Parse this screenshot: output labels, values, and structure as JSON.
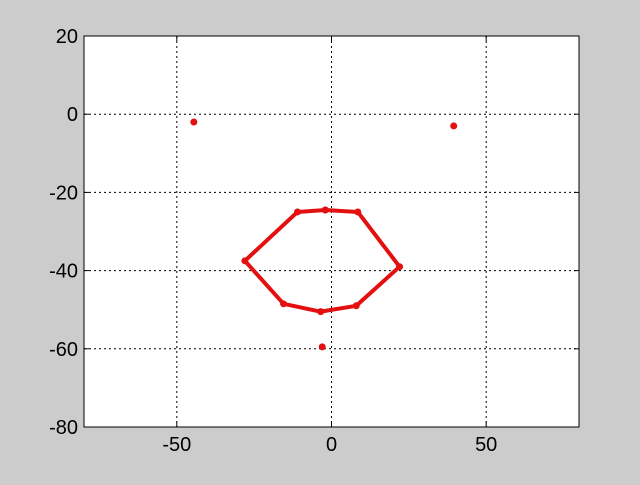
{
  "chart_data": {
    "type": "line",
    "title": "",
    "xlabel": "",
    "ylabel": "",
    "xlim": [
      -80,
      80
    ],
    "ylim": [
      -80,
      20
    ],
    "xticks": [
      -50,
      0,
      50
    ],
    "yticks": [
      20,
      0,
      -20,
      -40,
      -60,
      -80
    ],
    "grid": true,
    "grid_style": "dotted",
    "colors": {
      "figure_background": "#cccccc",
      "axes_background": "#ffffff",
      "series": "#e41010"
    },
    "series": [
      {
        "marker": "dot",
        "line": "solid",
        "points": [
          [
            -2,
            -24.5
          ],
          [
            8.5,
            -25
          ],
          [
            22,
            -39
          ],
          [
            8,
            -49
          ],
          [
            -3.5,
            -50.5
          ],
          [
            -15.5,
            -48.5
          ],
          [
            -28,
            -37.5
          ],
          [
            -11,
            -25
          ],
          [
            -2,
            -24.5
          ]
        ]
      },
      {
        "marker": "dot",
        "line": "none",
        "points": [
          [
            -44.5,
            -2
          ],
          [
            39.5,
            -3
          ],
          [
            -3,
            -59.5
          ]
        ]
      }
    ]
  }
}
